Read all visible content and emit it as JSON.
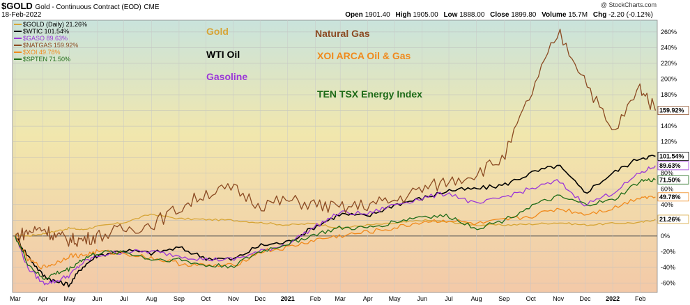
{
  "header": {
    "symbol": "$GOLD",
    "description": "Gold - Continuous Contract (EOD)",
    "exchange": "CME",
    "date": "18-Feb-2022",
    "watermark": "@ StockCharts.com",
    "quote": [
      {
        "label": "Open",
        "value": "1901.40"
      },
      {
        "label": "High",
        "value": "1905.00"
      },
      {
        "label": "Low",
        "value": "1888.00"
      },
      {
        "label": "Close",
        "value": "1899.80"
      },
      {
        "label": "Volume",
        "value": "15.7M"
      },
      {
        "label": "Chg",
        "value": "-2.20 (-0.12%)"
      }
    ]
  },
  "annotations": [
    {
      "text": "Gold",
      "color": "#d6a537"
    },
    {
      "text": "Natural Gas",
      "color": "#8b4a22"
    },
    {
      "text": "WTI Oil",
      "color": "#000000"
    },
    {
      "text": "XOI ARCA Oil & Gas",
      "color": "#f0891b"
    },
    {
      "text": "Gasoline",
      "color": "#9b37d8"
    },
    {
      "text": "TEN TSX Energy Index",
      "color": "#1d6a17"
    }
  ],
  "chart_data": {
    "type": "line",
    "ylim": [
      -72,
      275
    ],
    "y_ticks": [
      "-60%",
      "-40%",
      "-20%",
      "0%",
      "20%",
      "40%",
      "60%",
      "80%",
      "100%",
      "120%",
      "140%",
      "160%",
      "180%",
      "200%",
      "220%",
      "240%",
      "260%"
    ],
    "x_ticks": [
      "Mar",
      "Apr",
      "May",
      "Jun",
      "Jul",
      "Aug",
      "Sep",
      "Oct",
      "Nov",
      "Dec",
      "2021",
      "Feb",
      "Mar",
      "Apr",
      "May",
      "Jun",
      "Jul",
      "Aug",
      "Sep",
      "Oct",
      "Nov",
      "Dec",
      "2022",
      "Feb"
    ],
    "x_tick_bold": [
      "2021",
      "2022"
    ],
    "x_dates": [
      "2020-03-01",
      "2020-03-15",
      "2020-04-01",
      "2020-04-15",
      "2020-05-01",
      "2020-05-15",
      "2020-06-01",
      "2020-07-01",
      "2020-08-01",
      "2020-09-01",
      "2020-10-01",
      "2020-11-01",
      "2020-12-01",
      "2021-01-01",
      "2021-02-01",
      "2021-03-01",
      "2021-04-01",
      "2021-05-01",
      "2021-06-01",
      "2021-07-01",
      "2021-08-01",
      "2021-09-01",
      "2021-10-01",
      "2021-11-01",
      "2021-12-01",
      "2022-01-01",
      "2022-02-01",
      "2022-02-18"
    ],
    "series": [
      {
        "name": "$GOLD (Daily) 21.26%",
        "color": "#d6a537",
        "end_label": "21.26%",
        "values": [
          2,
          0,
          3,
          6,
          10,
          8,
          12,
          17,
          28,
          22,
          21,
          20,
          17,
          14,
          16,
          10,
          14,
          16,
          20,
          18,
          14,
          14,
          15,
          17,
          14,
          16,
          17,
          21.26
        ]
      },
      {
        "name": "$WTIC 101.54%",
        "color": "#000000",
        "end_label": "101.54%",
        "values": [
          0,
          -25,
          -50,
          -58,
          -62,
          -40,
          -25,
          -18,
          -22,
          -15,
          -28,
          -30,
          -12,
          -8,
          12,
          28,
          25,
          40,
          48,
          58,
          60,
          65,
          80,
          90,
          55,
          80,
          100,
          101.54
        ]
      },
      {
        "name": "$GASO 89.63%",
        "color": "#9b37d8",
        "end_label": "89.63%",
        "values": [
          0,
          -40,
          -60,
          -58,
          -50,
          -35,
          -25,
          -20,
          -20,
          -25,
          -30,
          -30,
          -20,
          -10,
          12,
          30,
          28,
          40,
          48,
          55,
          40,
          50,
          60,
          70,
          40,
          55,
          80,
          89.63
        ]
      },
      {
        "name": "$NATGAS 159.92%",
        "color": "#8b4a22",
        "end_label": "159.92%",
        "values": [
          0,
          5,
          10,
          0,
          -5,
          -5,
          0,
          8,
          15,
          35,
          55,
          60,
          40,
          45,
          40,
          35,
          40,
          45,
          60,
          70,
          80,
          100,
          180,
          260,
          200,
          130,
          190,
          159.92
        ]
      },
      {
        "name": "$XOI 49.78%",
        "color": "#f0891b",
        "end_label": "49.78%",
        "values": [
          0,
          -30,
          -40,
          -35,
          -25,
          -25,
          -20,
          -22,
          -28,
          -35,
          -38,
          -38,
          -20,
          -15,
          -5,
          0,
          5,
          10,
          18,
          20,
          15,
          20,
          25,
          35,
          28,
          35,
          50,
          49.78
        ]
      },
      {
        "name": "$SPTEN 71.50%",
        "color": "#1d6a17",
        "end_label": "71.50%",
        "values": [
          0,
          -35,
          -55,
          -48,
          -42,
          -30,
          -22,
          -20,
          -30,
          -30,
          -38,
          -38,
          -20,
          -10,
          2,
          10,
          10,
          18,
          25,
          25,
          10,
          20,
          38,
          50,
          40,
          45,
          70,
          71.5
        ]
      }
    ]
  }
}
